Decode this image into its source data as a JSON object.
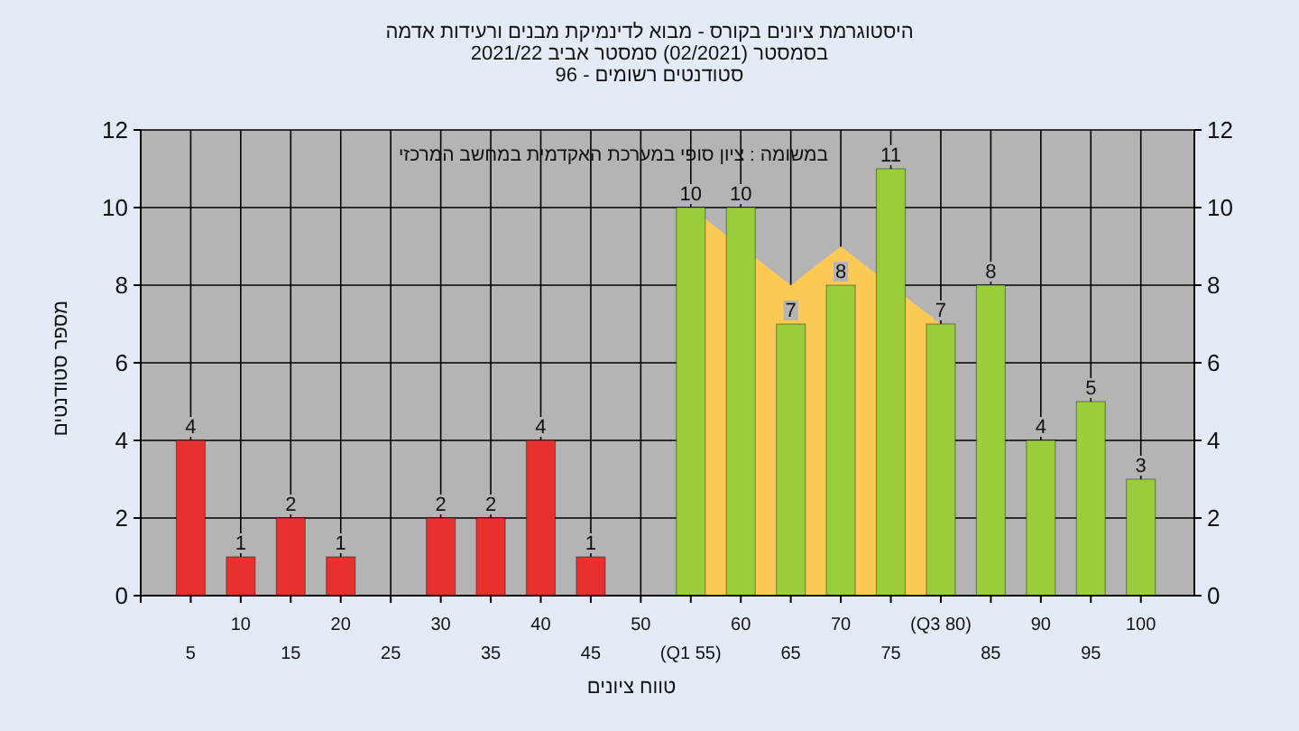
{
  "chart_data": {
    "type": "bar",
    "title": "היסטוגרמת ציונים בקורס - מבוא לדינמיקת מבנים ורעידות אדמה",
    "subtitle": "בסמסטר (02/2021) סמסטר אביב 2021/22",
    "annotations": [
      "סטודנטים רשומים - 96",
      "במשומה : ציון סופי במערכת האקדמית במחשב המרכזי"
    ],
    "xlabel": "טווח ציונים",
    "ylabel": "מספר סטודנטים",
    "categories": [
      "5",
      "10",
      "15",
      "20",
      "25",
      "30",
      "35",
      "40",
      "45",
      "50",
      "(Q1 55)",
      "60",
      "65",
      "70",
      "75",
      "(Q3 80)",
      "85",
      "90",
      "95",
      "100"
    ],
    "series": [
      {
        "type": "area",
        "color": "#fdc955",
        "values": [
          null,
          null,
          null,
          null,
          null,
          null,
          null,
          null,
          null,
          null,
          10,
          null,
          8,
          9,
          null,
          7,
          null,
          null,
          null,
          null
        ]
      },
      {
        "type": "bar",
        "colors": [
          "#e8302f",
          "#e8302f",
          "#e8302f",
          "#e8302f",
          "#e8302f",
          "#e8302f",
          "#e8302f",
          "#e8302f",
          "#e8302f",
          "#e8302f",
          "#9acd3c",
          "#9acd3c",
          "#9acd3c",
          "#9acd3c",
          "#9acd3c",
          "#9acd3c",
          "#9acd3c",
          "#9acd3c",
          "#9acd3c",
          "#9acd3c"
        ],
        "values": [
          4,
          1,
          2,
          1,
          0,
          2,
          2,
          4,
          1,
          0,
          10,
          10,
          7,
          8,
          11,
          7,
          8,
          4,
          5,
          3
        ],
        "value_labels": [
          "4",
          "1",
          "2",
          "1",
          null,
          "2",
          "2",
          "4",
          "1",
          null,
          "10",
          "10",
          "7",
          "8",
          "11",
          "7",
          "8",
          "4",
          "5",
          "3"
        ]
      }
    ],
    "ylim": [
      0,
      12
    ],
    "yticks": [
      0,
      2,
      4,
      6,
      8,
      10,
      12
    ],
    "y2lim": [
      0,
      12
    ],
    "y2ticks": [
      0,
      2,
      4,
      6,
      8,
      10,
      12
    ],
    "grid": true
  }
}
